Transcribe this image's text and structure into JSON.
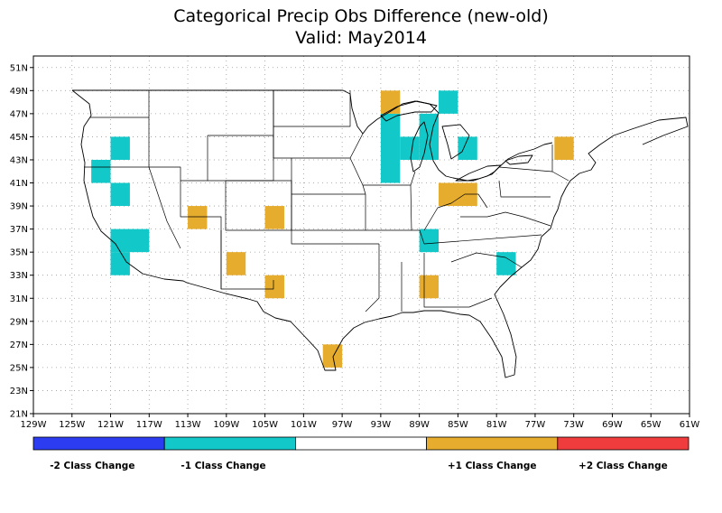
{
  "title": {
    "line1": "Categorical Precip Obs Difference (new-old)",
    "line2": "Valid: May2014"
  },
  "map": {
    "projection": "lat-lon",
    "lon_range": [
      -129,
      -61
    ],
    "lat_range": [
      21,
      52
    ],
    "grid_lines": true,
    "lon_tick_labels": [
      "129W",
      "125W",
      "121W",
      "117W",
      "113W",
      "109W",
      "105W",
      "101W",
      "97W",
      "93W",
      "89W",
      "85W",
      "81W",
      "77W",
      "73W",
      "69W",
      "65W",
      "61W"
    ],
    "lat_tick_labels": [
      "21N",
      "23N",
      "25N",
      "27N",
      "29N",
      "31N",
      "33N",
      "35N",
      "37N",
      "39N",
      "41N",
      "43N",
      "45N",
      "47N",
      "49N",
      "51N"
    ]
  },
  "legend": {
    "items": [
      {
        "label": "-2 Class Change",
        "color": "#2c3cf0"
      },
      {
        "label": "-1 Class Change",
        "color": "#12c8c8"
      },
      {
        "label": "",
        "color": "#ffffff"
      },
      {
        "label": "+1 Class Change",
        "color": "#e6ac2d"
      },
      {
        "label": "+2 Class Change",
        "color": "#f03c3c"
      }
    ]
  },
  "cells": [
    {
      "lon0": -121,
      "lon1": -119,
      "lat0": 43,
      "lat1": 45,
      "change": -1
    },
    {
      "lon0": -123,
      "lon1": -121,
      "lat0": 41,
      "lat1": 43,
      "change": -1
    },
    {
      "lon0": -121,
      "lon1": -119,
      "lat0": 39,
      "lat1": 41,
      "change": -1
    },
    {
      "lon0": -121,
      "lon1": -117,
      "lat0": 35,
      "lat1": 37,
      "change": -1
    },
    {
      "lon0": -121,
      "lon1": -119,
      "lat0": 33,
      "lat1": 35,
      "change": -1
    },
    {
      "lon0": -93,
      "lon1": -91,
      "lat0": 41,
      "lat1": 47,
      "change": -1
    },
    {
      "lon0": -91,
      "lon1": -89,
      "lat0": 43,
      "lat1": 45,
      "change": -1
    },
    {
      "lon0": -89,
      "lon1": -87,
      "lat0": 43,
      "lat1": 47,
      "change": -1
    },
    {
      "lon0": -87,
      "lon1": -85,
      "lat0": 47,
      "lat1": 49,
      "change": -1
    },
    {
      "lon0": -85,
      "lon1": -83,
      "lat0": 43,
      "lat1": 45,
      "change": -1
    },
    {
      "lon0": -89,
      "lon1": -87,
      "lat0": 35,
      "lat1": 37,
      "change": -1
    },
    {
      "lon0": -81,
      "lon1": -79,
      "lat0": 33,
      "lat1": 35,
      "change": -1
    },
    {
      "lon0": -93,
      "lon1": -91,
      "lat0": 47,
      "lat1": 49,
      "change": 1
    },
    {
      "lon0": -75,
      "lon1": -73,
      "lat0": 43,
      "lat1": 45,
      "change": 1
    },
    {
      "lon0": -87,
      "lon1": -83,
      "lat0": 39,
      "lat1": 41,
      "change": 1
    },
    {
      "lon0": -113,
      "lon1": -111,
      "lat0": 37,
      "lat1": 39,
      "change": 1
    },
    {
      "lon0": -105,
      "lon1": -103,
      "lat0": 37,
      "lat1": 39,
      "change": 1
    },
    {
      "lon0": -109,
      "lon1": -107,
      "lat0": 33,
      "lat1": 35,
      "change": 1
    },
    {
      "lon0": -105,
      "lon1": -103,
      "lat0": 31,
      "lat1": 33,
      "change": 1
    },
    {
      "lon0": -89,
      "lon1": -87,
      "lat0": 31,
      "lat1": 33,
      "change": 1
    },
    {
      "lon0": -99,
      "lon1": -97,
      "lat0": 25,
      "lat1": 27,
      "change": 1
    }
  ]
}
